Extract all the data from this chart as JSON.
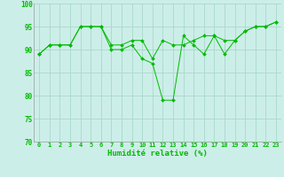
{
  "xlabel": "Humidité relative (%)",
  "background_color": "#cceee8",
  "grid_color": "#aad8cc",
  "line_color": "#00bb00",
  "xlim": [
    -0.5,
    23.5
  ],
  "ylim": [
    70,
    100
  ],
  "yticks": [
    70,
    75,
    80,
    85,
    90,
    95,
    100
  ],
  "xticks": [
    0,
    1,
    2,
    3,
    4,
    5,
    6,
    7,
    8,
    9,
    10,
    11,
    12,
    13,
    14,
    15,
    16,
    17,
    18,
    19,
    20,
    21,
    22,
    23
  ],
  "series": [
    [
      89,
      91,
      91,
      91,
      95,
      95,
      95,
      90,
      90,
      91,
      88,
      87,
      79,
      79,
      93,
      91,
      89,
      93,
      89,
      92,
      94,
      95,
      95,
      96
    ],
    [
      89,
      91,
      91,
      91,
      95,
      95,
      95,
      91,
      91,
      92,
      92,
      88,
      92,
      91,
      91,
      92,
      93,
      93,
      92,
      92,
      94,
      95,
      95,
      96
    ]
  ]
}
